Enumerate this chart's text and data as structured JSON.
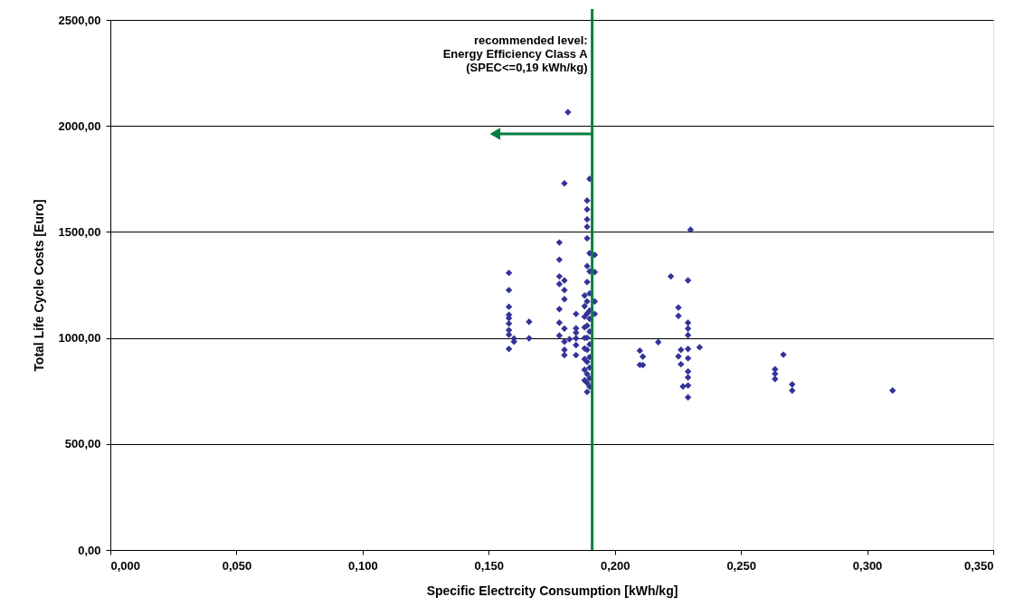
{
  "chart_data": {
    "type": "scatter",
    "xlabel": "Specific Electrcity Consumption [kWh/kg]",
    "ylabel": "Total Life Cycle Costs [Euro]",
    "xlim": [
      0,
      0.35
    ],
    "ylim": [
      0,
      2500
    ],
    "xticks": [
      {
        "value": 0,
        "label": "0,000"
      },
      {
        "value": 0.05,
        "label": "0,050"
      },
      {
        "value": 0.1,
        "label": "0,100"
      },
      {
        "value": 0.15,
        "label": "0,150"
      },
      {
        "value": 0.2,
        "label": "0,200"
      },
      {
        "value": 0.25,
        "label": "0,250"
      },
      {
        "value": 0.3,
        "label": "0,300"
      },
      {
        "value": 0.35,
        "label": "0,350"
      }
    ],
    "yticks": [
      {
        "value": 0,
        "label": "0,00"
      },
      {
        "value": 500,
        "label": "500,00"
      },
      {
        "value": 1000,
        "label": "1000,00"
      },
      {
        "value": 1500,
        "label": "1500,00"
      },
      {
        "value": 2000,
        "label": "2000,00"
      },
      {
        "value": 2500,
        "label": "2500,00"
      }
    ],
    "grid": "y",
    "marker": "diamond",
    "ref_lines": [
      {
        "axis": "x",
        "value": 0.191,
        "label": "recommended level:\nEnergy Efficiency Class A\n(SPEC<=0,19 kWh/kg)",
        "color": "#008040"
      }
    ],
    "series": [
      {
        "color": "#333399",
        "x": [
          0.158,
          0.158,
          0.158,
          0.158,
          0.158,
          0.158,
          0.158,
          0.158,
          0.16,
          0.16,
          0.158,
          0.166,
          0.166,
          0.178,
          0.178,
          0.178,
          0.178,
          0.178,
          0.178,
          0.178,
          0.18,
          0.18,
          0.18,
          0.18,
          0.18,
          0.18,
          0.18,
          0.18,
          0.1814,
          0.1846,
          0.1846,
          0.1846,
          0.1846,
          0.1846,
          0.1846,
          0.182,
          0.19,
          0.189,
          0.189,
          0.189,
          0.189,
          0.189,
          0.19,
          0.189,
          0.19,
          0.189,
          0.189,
          0.189,
          0.189,
          0.189,
          0.189,
          0.189,
          0.189,
          0.189,
          0.189,
          0.192,
          0.192,
          0.192,
          0.192,
          0.19,
          0.19,
          0.19,
          0.19,
          0.19,
          0.19,
          0.19,
          0.19,
          0.19,
          0.188,
          0.188,
          0.188,
          0.188,
          0.188,
          0.188,
          0.188,
          0.188,
          0.188,
          0.23,
          0.2222,
          0.229,
          0.2252,
          0.2252,
          0.229,
          0.229,
          0.229,
          0.2172,
          0.2099,
          0.2111,
          0.2099,
          0.2111,
          0.2262,
          0.229,
          0.2336,
          0.2252,
          0.229,
          0.2262,
          0.229,
          0.229,
          0.227,
          0.229,
          0.229,
          0.2635,
          0.2635,
          0.2635,
          0.2703,
          0.2703,
          0.3101,
          0.2668
        ],
        "values": [
          1307,
          1226,
          1147,
          1109,
          1093,
          1068,
          1037,
          1015,
          997,
          982,
          948,
          1076,
          998,
          1450,
          1369,
          1290,
          1254,
          1136,
          1072,
          1011,
          1729,
          1271,
          1226,
          1183,
          1044,
          982,
          944,
          919,
          2065,
          1113,
          1045,
          1025,
          998,
          966,
          919,
          994,
          1750,
          1648,
          1606,
          1559,
          1524,
          1470,
          1399,
          1339,
          1314,
          1264,
          1172,
          1115,
          1058,
          1001,
          944,
          887,
          830,
          788,
          745,
          1392,
          1311,
          1172,
          1113,
          1210,
          1130,
          1090,
          1030,
          970,
          910,
          860,
          810,
          770,
          1200,
          1150,
          1100,
          1050,
          1000,
          950,
          900,
          850,
          800,
          1510,
          1290,
          1271,
          1143,
          1104,
          1072,
          1044,
          1013,
          980,
          940,
          912,
          873,
          872,
          944,
          948,
          956,
          913,
          904,
          876,
          842,
          814,
          771,
          776,
          720,
          852,
          831,
          806,
          781,
          752,
          752,
          921
        ]
      }
    ]
  }
}
